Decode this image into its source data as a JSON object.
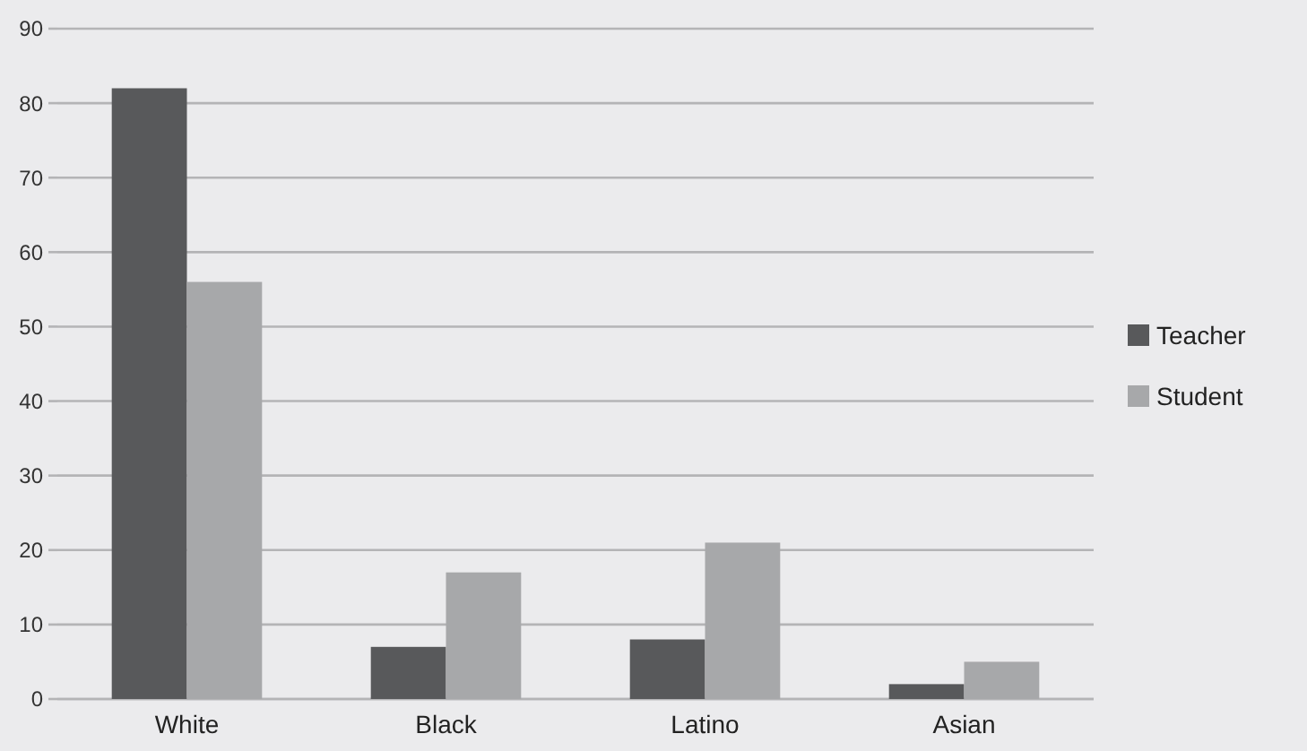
{
  "chart_data": {
    "type": "bar",
    "categories": [
      "White",
      "Black",
      "Latino",
      "Asian"
    ],
    "series": [
      {
        "name": "Teacher",
        "color": "#58595b",
        "values": [
          82,
          7,
          8,
          2
        ]
      },
      {
        "name": "Student",
        "color": "#a7a8aa",
        "values": [
          56,
          17,
          21,
          5
        ]
      }
    ],
    "ylim": [
      0,
      90
    ],
    "yticks": [
      0,
      10,
      20,
      30,
      40,
      50,
      60,
      70,
      80,
      90
    ],
    "grid": "y",
    "legend": "right"
  }
}
